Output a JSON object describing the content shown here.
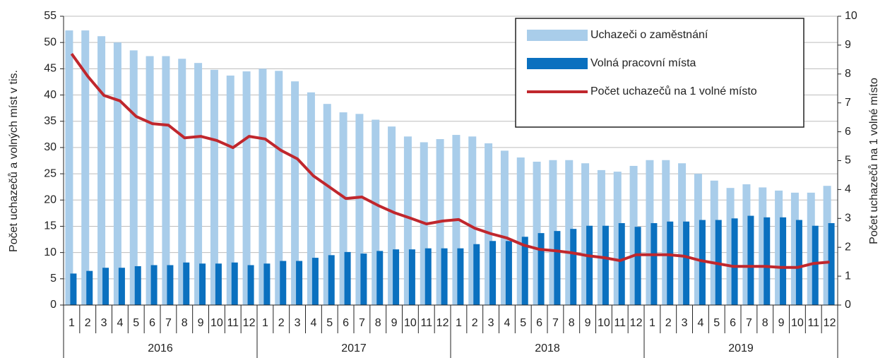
{
  "chart_data": {
    "type": "bar",
    "ylabel": "Počet uchazečů a volných míst v tis.",
    "y2label": "Počet uchazečů na 1 volné místo",
    "categories": [
      "1",
      "2",
      "3",
      "4",
      "5",
      "6",
      "7",
      "8",
      "9",
      "10",
      "11",
      "12",
      "1",
      "2",
      "3",
      "4",
      "5",
      "6",
      "7",
      "8",
      "9",
      "10",
      "11",
      "12",
      "1",
      "2",
      "3",
      "4",
      "5",
      "6",
      "7",
      "8",
      "9",
      "10",
      "11",
      "12",
      "1",
      "2",
      "3",
      "4",
      "5",
      "6",
      "7",
      "8",
      "9",
      "10",
      "11",
      "12"
    ],
    "x_groups": [
      "2016",
      "2017",
      "2018",
      "2019"
    ],
    "ylim": [
      0,
      55
    ],
    "yticks": [
      0,
      5,
      10,
      15,
      20,
      25,
      30,
      35,
      40,
      45,
      50,
      55
    ],
    "y2lim": [
      0,
      10
    ],
    "y2ticks": [
      0,
      1,
      2,
      3,
      4,
      5,
      6,
      7,
      8,
      9,
      10
    ],
    "grid": true,
    "legend": "top-right",
    "series": [
      {
        "name": "Uchazeči o zaměstnání",
        "type": "bar",
        "color": "#a9cdea",
        "values": [
          52.3,
          52.3,
          51.2,
          50.0,
          48.5,
          47.4,
          47.4,
          46.9,
          46.1,
          44.8,
          43.7,
          44.5,
          45.0,
          44.6,
          42.6,
          40.5,
          38.3,
          36.7,
          36.4,
          35.3,
          34.0,
          32.1,
          31.0,
          31.6,
          32.4,
          32.1,
          30.8,
          29.4,
          28.1,
          27.3,
          27.6,
          27.6,
          27.0,
          25.7,
          25.4,
          26.5,
          27.6,
          27.6,
          27.0,
          25.0,
          23.7,
          22.3,
          23.0,
          22.4,
          21.8,
          21.4,
          21.4,
          22.7
        ]
      },
      {
        "name": "Volná pracovní místa",
        "type": "bar",
        "color": "#0a70bf",
        "values": [
          6.0,
          6.5,
          7.1,
          7.1,
          7.4,
          7.6,
          7.6,
          8.1,
          7.9,
          7.9,
          8.1,
          7.6,
          7.9,
          8.4,
          8.4,
          9.0,
          9.5,
          10.1,
          9.8,
          10.3,
          10.6,
          10.6,
          10.8,
          10.8,
          10.8,
          11.6,
          12.2,
          12.2,
          13.0,
          13.7,
          14.1,
          14.5,
          15.1,
          15.1,
          15.6,
          14.9,
          15.6,
          15.9,
          15.9,
          16.2,
          16.2,
          16.5,
          17.0,
          16.7,
          16.7,
          16.2,
          15.1,
          15.6
        ]
      },
      {
        "name": "Počet uchazečů na 1 volné místo",
        "type": "line",
        "axis": "y2",
        "color": "#c0272d",
        "values": [
          8.7,
          7.92,
          7.26,
          7.07,
          6.53,
          6.28,
          6.23,
          5.79,
          5.84,
          5.7,
          5.45,
          5.84,
          5.75,
          5.35,
          5.06,
          4.47,
          4.08,
          3.69,
          3.74,
          3.45,
          3.2,
          3.01,
          2.81,
          2.91,
          2.96,
          2.66,
          2.47,
          2.32,
          2.08,
          1.93,
          1.88,
          1.81,
          1.71,
          1.64,
          1.54,
          1.74,
          1.74,
          1.74,
          1.69,
          1.54,
          1.44,
          1.34,
          1.34,
          1.34,
          1.3,
          1.3,
          1.44,
          1.49
        ]
      }
    ]
  }
}
